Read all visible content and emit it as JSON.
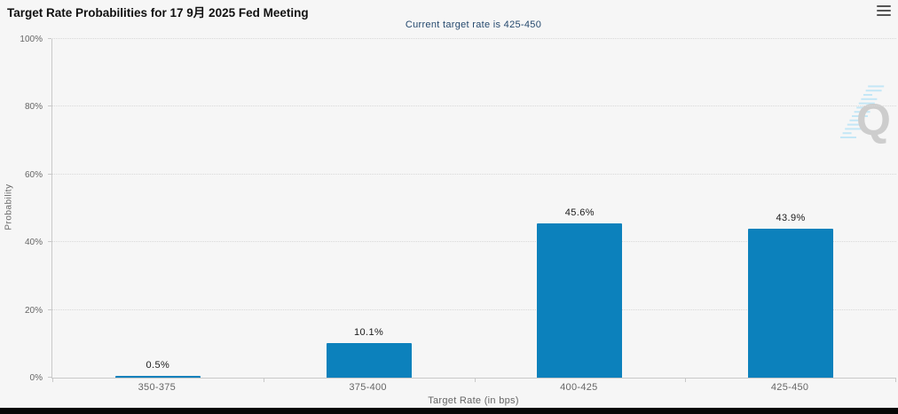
{
  "header": {
    "title": "Target Rate Probabilities for 17 9月 2025 Fed Meeting",
    "subtitle": "Current target rate is 425-450",
    "menu_icon": "hamburger-menu-icon"
  },
  "chart_data": {
    "type": "bar",
    "title": "Target Rate Probabilities for 17 9月 2025 Fed Meeting",
    "subtitle": "Current target rate is 425-450",
    "categories": [
      "350-375",
      "375-400",
      "400-425",
      "425-450"
    ],
    "values": [
      0.5,
      10.1,
      45.6,
      43.9
    ],
    "value_labels": [
      "0.5%",
      "10.1%",
      "45.6%",
      "43.9%"
    ],
    "xlabel": "Target Rate (in bps)",
    "ylabel": "Probability",
    "ylim": [
      0,
      100
    ],
    "yticks": [
      0,
      20,
      40,
      60,
      80,
      100
    ],
    "ytick_labels": [
      "0%",
      "20%",
      "40%",
      "60%",
      "80%",
      "100%"
    ],
    "grid": "horizontal-dotted",
    "legend": "none",
    "bar_color": "#0c81bc"
  },
  "watermark": {
    "letter": "Q",
    "stripe_color": "#bfe6f7",
    "letter_color": "#c9c9c9"
  },
  "colors": {
    "background": "#f6f6f6",
    "subtitle_text": "#25496e",
    "axis_text": "#666666",
    "grid": "#d8d8d8",
    "bottom_bar": "#060606"
  }
}
